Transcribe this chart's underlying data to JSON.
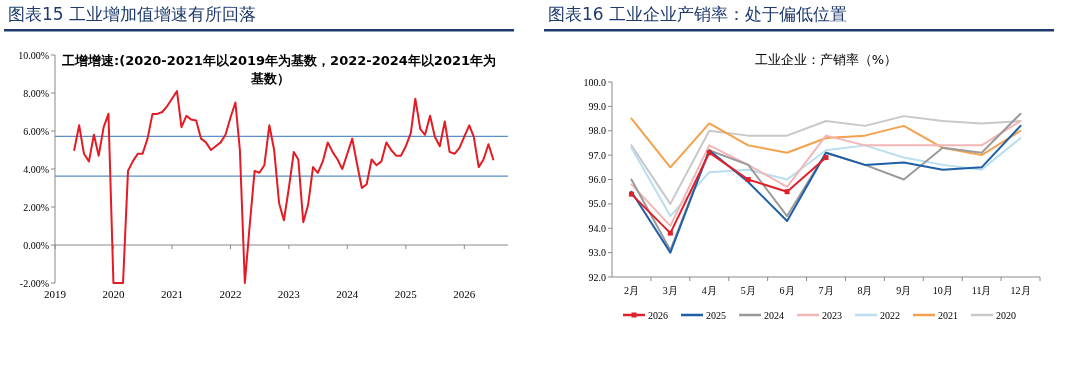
{
  "chart_data": [
    {
      "type": "line",
      "title": "图表15  工业增加值增速有所回落",
      "subtitle": "工增增速:(2020-2021年以2019年为基数，2022-2024年以2021年为基数）",
      "x": [
        "2019-05",
        "2019-06",
        "2019-07",
        "2019-08",
        "2019-09",
        "2019-10",
        "2019-11",
        "2019-12",
        "2020-01",
        "2020-02",
        "2020-03",
        "2020-04",
        "2020-05",
        "2020-06",
        "2020-07",
        "2020-08",
        "2020-09",
        "2020-10",
        "2020-11",
        "2020-12",
        "2021-01",
        "2021-02",
        "2021-03",
        "2021-04",
        "2021-05",
        "2021-06",
        "2021-07",
        "2021-08",
        "2021-09",
        "2021-10",
        "2021-11",
        "2021-12",
        "2022-01",
        "2022-02",
        "2022-03",
        "2022-04",
        "2022-05",
        "2022-06",
        "2022-07",
        "2022-08",
        "2022-09",
        "2022-10",
        "2022-11",
        "2022-12",
        "2023-01",
        "2023-02",
        "2023-03",
        "2023-04",
        "2023-05",
        "2023-06",
        "2023-07",
        "2023-08",
        "2023-09",
        "2023-10",
        "2023-11",
        "2023-12",
        "2024-01",
        "2024-02",
        "2024-03",
        "2024-04",
        "2024-05",
        "2024-06",
        "2024-07",
        "2024-08",
        "2024-09",
        "2024-10",
        "2024-11",
        "2024-12",
        "2025-01",
        "2025-02",
        "2025-03",
        "2025-04",
        "2025-05",
        "2025-06",
        "2025-07",
        "2025-08",
        "2025-09",
        "2025-10",
        "2025-11",
        "2025-12",
        "2026-01",
        "2026-02",
        "2026-03",
        "2026-04",
        "2026-05",
        "2026-06",
        "2026-07"
      ],
      "series": [
        {
          "color": "#e31b23",
          "values": [
            5.0,
            6.3,
            4.8,
            4.4,
            5.8,
            4.7,
            6.2,
            6.9,
            -2.0,
            -2.0,
            -2.0,
            3.9,
            4.4,
            4.8,
            4.8,
            5.6,
            6.9,
            6.9,
            7.0,
            7.3,
            7.7,
            8.1,
            6.2,
            6.8,
            6.6,
            6.55,
            5.6,
            5.4,
            5.0,
            5.2,
            5.4,
            5.8,
            6.7,
            7.5,
            5.0,
            -2.0,
            1.0,
            3.9,
            3.8,
            4.2,
            6.3,
            5.0,
            2.2,
            1.3,
            3.0,
            4.9,
            4.5,
            1.2,
            2.1,
            4.1,
            3.8,
            4.4,
            5.4,
            4.9,
            4.5,
            4.0,
            4.8,
            5.6,
            4.3,
            3.0,
            3.2,
            4.5,
            4.2,
            4.4,
            5.4,
            5.0,
            4.7,
            4.7,
            5.2,
            5.9,
            7.7,
            6.1,
            5.8,
            6.8,
            5.7,
            5.2,
            6.5,
            4.9,
            4.8,
            5.1,
            5.7,
            6.3,
            5.7,
            4.1,
            4.5,
            5.3,
            4.5
          ]
        }
      ],
      "xlim": [
        "2019-01",
        "2026-10"
      ],
      "xticks": [
        {
          "value": "2019",
          "label": "2019"
        },
        {
          "value": "2020",
          "label": "2020"
        },
        {
          "value": "2021",
          "label": "2021"
        },
        {
          "value": "2022",
          "label": "2022"
        },
        {
          "value": "2023",
          "label": "2023"
        },
        {
          "value": "2024",
          "label": "2024"
        },
        {
          "value": "2025",
          "label": "2025"
        },
        {
          "value": "2026",
          "label": "2026"
        }
      ],
      "ylim": [
        -2,
        10
      ],
      "yticks": [
        {
          "value": -2,
          "label": "-2.00%"
        },
        {
          "value": 0,
          "label": "0.00%"
        },
        {
          "value": 2,
          "label": "2.00%"
        },
        {
          "value": 4,
          "label": "4.00%"
        },
        {
          "value": 6,
          "label": "6.00%"
        },
        {
          "value": 8,
          "label": "8.00%"
        },
        {
          "value": 10,
          "label": "10.00%"
        }
      ],
      "ref_lines": [
        {
          "axis": "y",
          "value": 5.72,
          "color": "#5b8fc9"
        },
        {
          "axis": "y",
          "value": 3.63,
          "color": "#5b8fc9"
        }
      ]
    },
    {
      "type": "line",
      "title": "图表16  工业企业产销率：处于偏低位置",
      "subtitle": "工业企业：产销率（%）",
      "categories": [
        "2月",
        "3月",
        "4月",
        "5月",
        "6月",
        "7月",
        "8月",
        "9月",
        "10月",
        "11月",
        "12月"
      ],
      "series": [
        {
          "name": "2026",
          "color": "#e0202a",
          "marker": "square",
          "values": [
            95.4,
            93.8,
            97.1,
            96.0,
            95.5,
            96.9,
            null,
            null,
            null,
            null,
            null
          ]
        },
        {
          "name": "2025",
          "color": "#1f5fa8",
          "values": [
            95.5,
            93.0,
            97.2,
            95.9,
            94.3,
            97.1,
            96.6,
            96.7,
            96.4,
            96.5,
            98.2
          ]
        },
        {
          "name": "2024",
          "color": "#9a9a9a",
          "values": [
            96.0,
            93.1,
            97.2,
            96.6,
            94.5,
            97.1,
            96.6,
            96.0,
            97.3,
            97.1,
            98.7
          ]
        },
        {
          "name": "2023",
          "color": "#f2b6b6",
          "values": [
            95.8,
            94.1,
            97.4,
            96.6,
            95.7,
            97.8,
            97.4,
            97.4,
            97.4,
            97.4,
            98.4
          ]
        },
        {
          "name": "2022",
          "color": "#b9def0",
          "values": [
            97.3,
            94.5,
            96.3,
            96.4,
            96.0,
            97.2,
            97.4,
            96.9,
            96.6,
            96.4,
            97.7
          ]
        },
        {
          "name": "2021",
          "color": "#f5a04a",
          "values": [
            98.5,
            96.5,
            98.3,
            97.4,
            97.1,
            97.7,
            97.8,
            98.2,
            97.3,
            97.0,
            98.0
          ]
        },
        {
          "name": "2020",
          "color": "#c8c8c8",
          "values": [
            97.4,
            95.0,
            98.0,
            97.8,
            97.8,
            98.4,
            98.2,
            98.6,
            98.4,
            98.3,
            98.4
          ]
        }
      ],
      "ylim": [
        92,
        100
      ],
      "yticks": [
        {
          "value": 92,
          "label": "92.0"
        },
        {
          "value": 93,
          "label": "93.0"
        },
        {
          "value": 94,
          "label": "94.0"
        },
        {
          "value": 95,
          "label": "95.0"
        },
        {
          "value": 96,
          "label": "96.0"
        },
        {
          "value": 97,
          "label": "97.0"
        },
        {
          "value": 98,
          "label": "98.0"
        },
        {
          "value": 99,
          "label": "99.0"
        },
        {
          "value": 100,
          "label": "100.0"
        }
      ],
      "legend": "bottom"
    }
  ]
}
